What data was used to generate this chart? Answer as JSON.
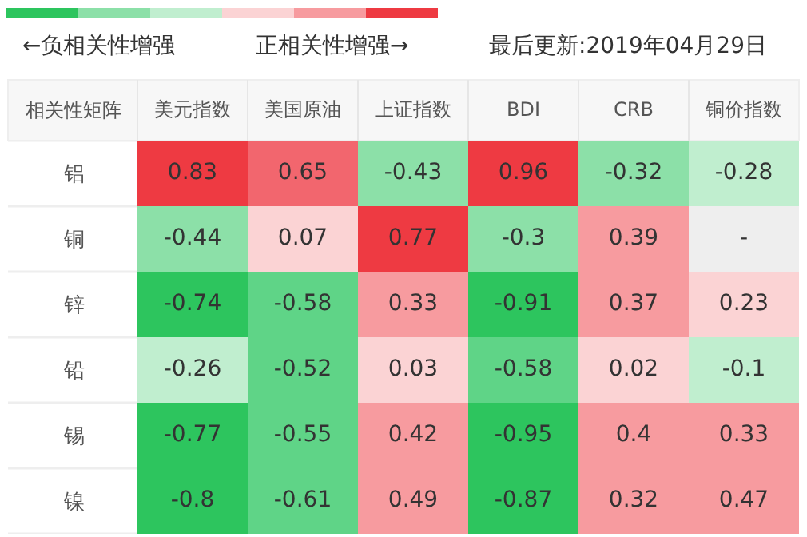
{
  "chart_data": {
    "type": "heatmap",
    "ylabel": "相关性矩阵",
    "annotations": [
      "←负相关性增强",
      "正相关性增强→",
      "最后更新:2019年04月29日"
    ],
    "categories": [
      "美元指数",
      "美国原油",
      "上证指数",
      "BDI",
      "CRB",
      "铜价指数"
    ],
    "y_categories": [
      "铝",
      "铜",
      "锌",
      "铅",
      "锡",
      "镍"
    ],
    "cells": [
      [
        0.83,
        0.65,
        -0.43,
        0.96,
        -0.32,
        -0.28
      ],
      [
        -0.44,
        0.07,
        0.77,
        -0.3,
        0.39,
        null
      ],
      [
        -0.74,
        -0.58,
        0.33,
        -0.91,
        0.37,
        0.23
      ],
      [
        -0.26,
        -0.52,
        0.03,
        -0.58,
        0.02,
        -0.1
      ],
      [
        -0.77,
        -0.55,
        0.42,
        -0.95,
        0.4,
        0.33
      ],
      [
        -0.8,
        -0.61,
        0.49,
        -0.87,
        0.32,
        0.47
      ]
    ],
    "cell_labels": [
      [
        "0.83",
        "0.65",
        "-0.43",
        "0.96",
        "-0.32",
        "-0.28"
      ],
      [
        "-0.44",
        "0.07",
        "0.77",
        "-0.3",
        "0.39",
        "-"
      ],
      [
        "-0.74",
        "-0.58",
        "0.33",
        "-0.91",
        "0.37",
        "0.23"
      ],
      [
        "-0.26",
        "-0.52",
        "0.03",
        "-0.58",
        "0.02",
        "-0.1"
      ],
      [
        "-0.77",
        "-0.55",
        "0.42",
        "-0.95",
        "0.4",
        "0.33"
      ],
      [
        "-0.8",
        "-0.61",
        "0.49",
        "-0.87",
        "0.32",
        "0.47"
      ]
    ],
    "data_labels": true
  }
}
